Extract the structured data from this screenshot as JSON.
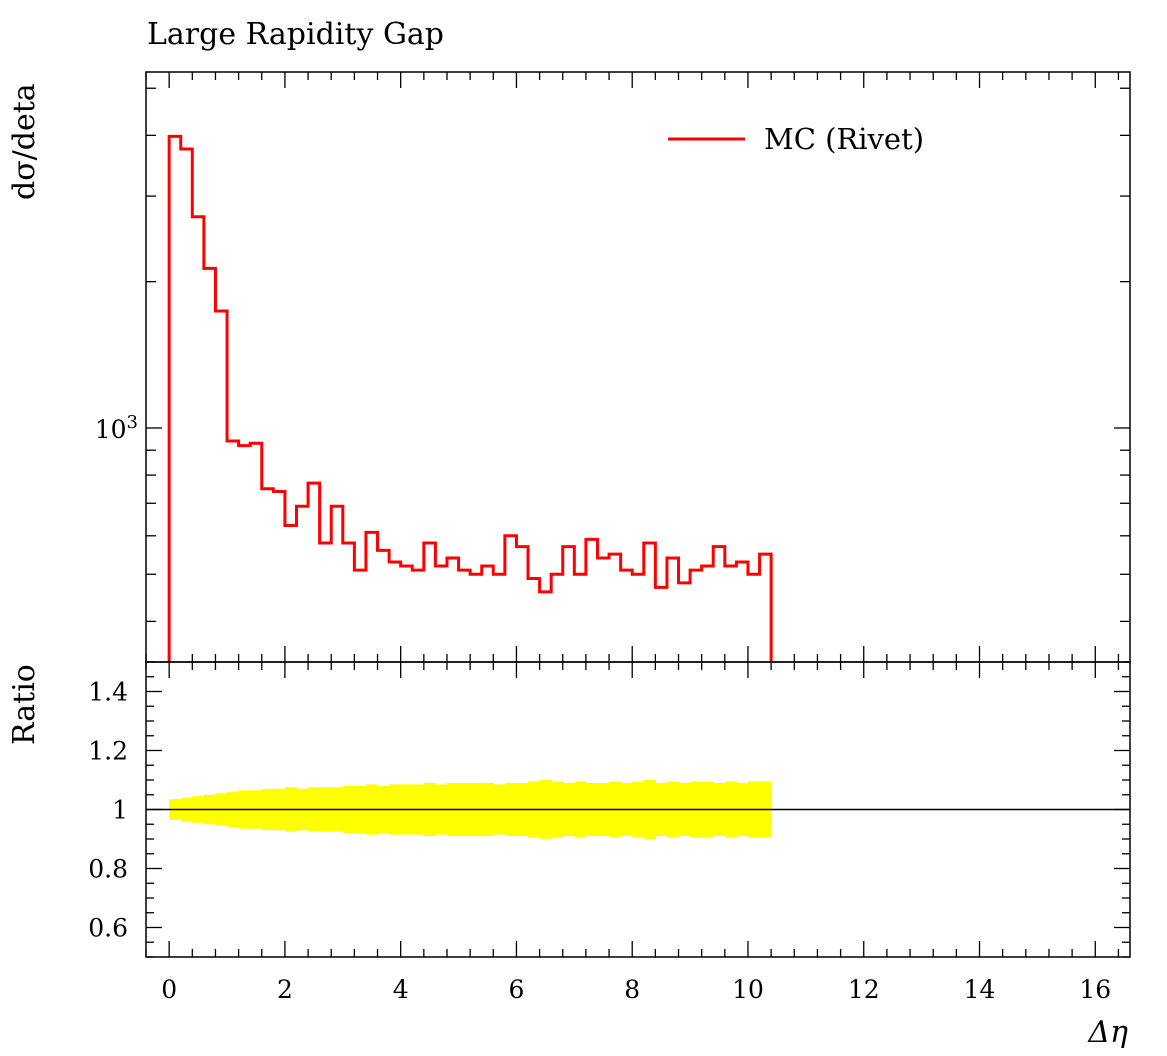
{
  "chart_data": [
    {
      "type": "line",
      "panel": "main",
      "title": "Large Rapidity Gap",
      "ylabel": "dσ/deta",
      "yscale": "log",
      "ylim": [
        330,
        5400
      ],
      "xlim": [
        -0.4,
        16.6
      ],
      "ytick_labels": [
        {
          "value": 1000,
          "label": "10",
          "exp": "3"
        }
      ],
      "legend": {
        "placement": "top-right"
      },
      "series": [
        {
          "name": "MC (Rivet)",
          "color": "#ff0000",
          "drawstyle": "steps",
          "bin_edges": [
            0.0,
            0.2,
            0.4,
            0.6,
            0.8,
            1.0,
            1.2,
            1.4,
            1.6,
            1.8,
            2.0,
            2.2,
            2.4,
            2.6,
            2.8,
            3.0,
            3.2,
            3.4,
            3.6,
            3.8,
            4.0,
            4.2,
            4.4,
            4.6,
            4.8,
            5.0,
            5.2,
            5.4,
            5.6,
            5.8,
            6.0,
            6.2,
            6.4,
            6.6,
            6.8,
            7.0,
            7.2,
            7.4,
            7.6,
            7.8,
            8.0,
            8.2,
            8.4,
            8.6,
            8.8,
            9.0,
            9.2,
            9.4,
            9.6,
            9.8,
            10.0,
            10.2,
            10.4
          ],
          "values": [
            3980,
            3750,
            2720,
            2130,
            1740,
            940,
            920,
            930,
            750,
            740,
            630,
            690,
            770,
            580,
            690,
            580,
            510,
            610,
            560,
            530,
            520,
            510,
            580,
            520,
            540,
            510,
            500,
            520,
            500,
            600,
            570,
            490,
            460,
            500,
            570,
            500,
            590,
            540,
            550,
            510,
            500,
            580,
            470,
            540,
            480,
            510,
            520,
            570,
            520,
            530,
            500,
            550
          ]
        }
      ]
    },
    {
      "type": "area",
      "panel": "ratio",
      "ylabel": "Ratio",
      "xlabel": "Δη",
      "ylim": [
        0.5,
        1.5
      ],
      "xlim": [
        -0.4,
        16.6
      ],
      "yticks": [
        0.6,
        0.8,
        1,
        1.2,
        1.4
      ],
      "ytick_labels": [
        "0.6",
        "0.8",
        "1",
        "1.2",
        "1.4"
      ],
      "xticks": [
        0,
        2,
        4,
        6,
        8,
        10,
        12,
        14,
        16
      ],
      "xtick_labels": [
        "0",
        "2",
        "4",
        "6",
        "8",
        "10",
        "12",
        "14",
        "16"
      ],
      "reference_line": 1,
      "band": {
        "color": "#ffff00",
        "bin_edges": [
          0.0,
          0.2,
          0.4,
          0.6,
          0.8,
          1.0,
          1.2,
          1.4,
          1.6,
          1.8,
          2.0,
          2.2,
          2.4,
          2.6,
          2.8,
          3.0,
          3.2,
          3.4,
          3.6,
          3.8,
          4.0,
          4.2,
          4.4,
          4.6,
          4.8,
          5.0,
          5.2,
          5.4,
          5.6,
          5.8,
          6.0,
          6.2,
          6.4,
          6.6,
          6.8,
          7.0,
          7.2,
          7.4,
          7.6,
          7.8,
          8.0,
          8.2,
          8.4,
          8.6,
          8.8,
          9.0,
          9.2,
          9.4,
          9.6,
          9.8,
          10.0,
          10.2,
          10.4
        ],
        "upper": [
          1.035,
          1.04,
          1.045,
          1.05,
          1.055,
          1.06,
          1.065,
          1.065,
          1.07,
          1.07,
          1.075,
          1.07,
          1.075,
          1.075,
          1.075,
          1.08,
          1.08,
          1.085,
          1.08,
          1.085,
          1.085,
          1.085,
          1.09,
          1.085,
          1.09,
          1.09,
          1.09,
          1.09,
          1.085,
          1.09,
          1.09,
          1.095,
          1.1,
          1.095,
          1.09,
          1.095,
          1.09,
          1.09,
          1.095,
          1.09,
          1.095,
          1.1,
          1.09,
          1.095,
          1.09,
          1.095,
          1.095,
          1.09,
          1.095,
          1.09,
          1.095,
          1.095
        ],
        "lower": [
          0.965,
          0.96,
          0.955,
          0.95,
          0.945,
          0.94,
          0.935,
          0.935,
          0.93,
          0.93,
          0.925,
          0.93,
          0.925,
          0.925,
          0.925,
          0.92,
          0.92,
          0.915,
          0.92,
          0.915,
          0.915,
          0.915,
          0.91,
          0.915,
          0.91,
          0.91,
          0.91,
          0.91,
          0.915,
          0.91,
          0.91,
          0.905,
          0.9,
          0.905,
          0.91,
          0.905,
          0.91,
          0.91,
          0.905,
          0.91,
          0.905,
          0.9,
          0.91,
          0.905,
          0.91,
          0.905,
          0.905,
          0.91,
          0.905,
          0.91,
          0.905,
          0.905
        ]
      }
    }
  ]
}
